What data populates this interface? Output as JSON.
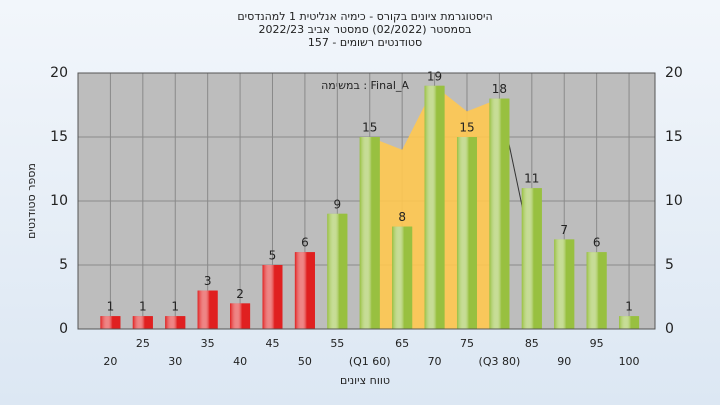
{
  "chart_data": {
    "type": "bar",
    "title": [
      "היסטוגרמת ציונים בקורס - כימיה אנליטית 1 למהנדסים",
      "בסמסטר  (02/2022)  סמסטר אביב 2022/23",
      "סטודנטים רשומים - 157"
    ],
    "annotation": "במשימה : Final_A",
    "x_label": "טווח ציונים",
    "y_label": "מספר סטודנטים",
    "x": [
      20,
      25,
      30,
      35,
      40,
      45,
      50,
      55,
      60,
      65,
      70,
      75,
      80,
      85,
      90,
      95,
      100
    ],
    "values": [
      1,
      1,
      1,
      3,
      2,
      5,
      6,
      9,
      15,
      8,
      19,
      15,
      18,
      11,
      7,
      6,
      1
    ],
    "colors": [
      "#e02020",
      "#e02020",
      "#e02020",
      "#e02020",
      "#e02020",
      "#e02020",
      "#e02020",
      "#98c040",
      "#98c040",
      "#98c040",
      "#98c040",
      "#98c040",
      "#98c040",
      "#98c040",
      "#98c040",
      "#98c040",
      "#98c040"
    ],
    "area": {
      "x": [
        60,
        65,
        70,
        75,
        80
      ],
      "values": [
        15,
        14,
        19,
        17,
        18
      ],
      "color": "#ffc850"
    },
    "line": {
      "x": [
        80,
        85
      ],
      "values": [
        18,
        6
      ],
      "color": "#333333"
    },
    "xlim": [
      15,
      104
    ],
    "xticks": [
      20,
      25,
      30,
      35,
      40,
      45,
      50,
      55,
      {
        "value": 60,
        "label": "(Q1 60)"
      },
      65,
      70,
      75,
      {
        "value": 80,
        "label": "(Q3 80)"
      },
      85,
      90,
      95,
      100
    ],
    "ylim": [
      0,
      20
    ],
    "yticks": [
      0,
      5,
      10,
      15,
      20
    ],
    "grid": true
  }
}
